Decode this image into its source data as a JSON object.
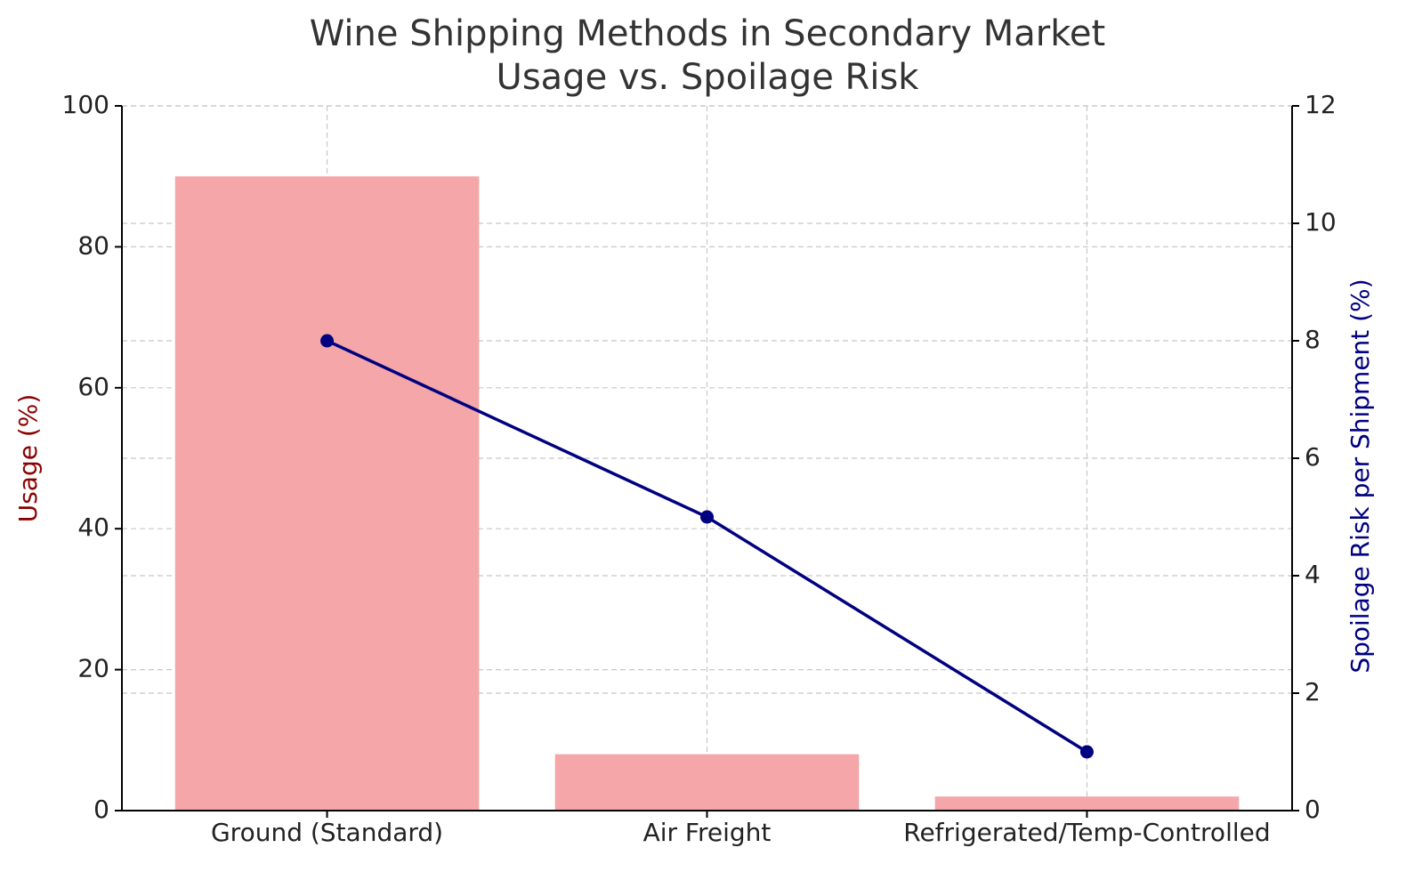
{
  "chart_data": {
    "type": "bar",
    "title": [
      "Wine Shipping Methods in Secondary Market",
      "Usage vs. Spoilage Risk"
    ],
    "ylabel": "Usage (%)",
    "y2label": "Spoilage Risk per Shipment (%)",
    "ylabel_color": "#8b0000",
    "y2label_color": "#000080",
    "categories": [
      "Ground (Standard)",
      "Air Freight",
      "Refrigerated/Temp-Controlled"
    ],
    "series": [
      {
        "type": "bar",
        "color": "#f4a6a8",
        "values": [
          90,
          8,
          2
        ]
      },
      {
        "type": "line",
        "axis": "y2",
        "color": "#000080",
        "values": [
          8,
          5,
          1
        ]
      }
    ],
    "ylim": [
      0,
      100
    ],
    "yticks": [
      0,
      20,
      40,
      60,
      80,
      100
    ],
    "y2lim": [
      0,
      12
    ],
    "y2ticks": [
      0,
      2,
      4,
      6,
      8,
      10,
      12
    ],
    "grid": true
  }
}
